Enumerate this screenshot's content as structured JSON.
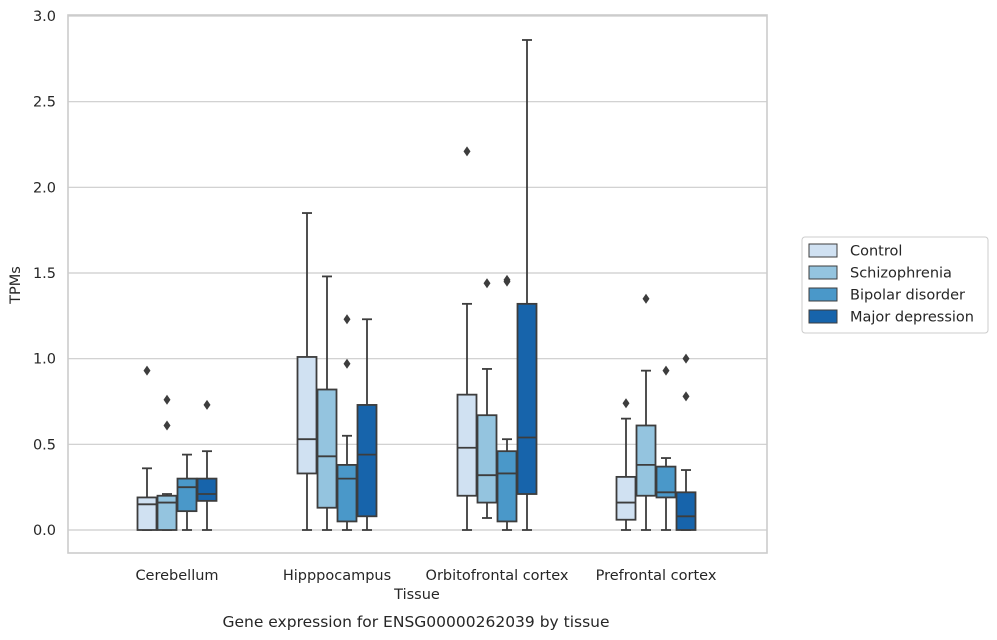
{
  "chart_data": {
    "type": "box",
    "title": "",
    "caption": "Gene expression for ENSG00000262039 by tissue",
    "xlabel": "Tissue",
    "ylabel": "TPMs",
    "ylim": [
      -0.14,
      3.0
    ],
    "yticks": [
      0.0,
      0.5,
      1.0,
      1.5,
      2.0,
      2.5,
      3.0
    ],
    "ytick_labels": [
      "0.0",
      "0.5",
      "1.0",
      "1.5",
      "2.0",
      "2.5",
      "3.0"
    ],
    "grid": "horizontal",
    "legend_position": "right",
    "categories": [
      "Cerebellum",
      "Hipppocampus",
      "Orbitofrontal cortex",
      "Prefrontal cortex"
    ],
    "series": [
      {
        "name": "Control",
        "color": "#d0e1f2",
        "boxes": [
          {
            "whisker_low": 0.0,
            "q1": 0.0,
            "median": 0.15,
            "q3": 0.19,
            "whisker_high": 0.36,
            "outliers": [
              0.93
            ]
          },
          {
            "whisker_low": 0.0,
            "q1": 0.33,
            "median": 0.53,
            "q3": 1.01,
            "whisker_high": 1.85,
            "outliers": []
          },
          {
            "whisker_low": 0.0,
            "q1": 0.2,
            "median": 0.48,
            "q3": 0.79,
            "whisker_high": 1.32,
            "outliers": [
              2.21
            ]
          },
          {
            "whisker_low": 0.0,
            "q1": 0.06,
            "median": 0.16,
            "q3": 0.31,
            "whisker_high": 0.65,
            "outliers": [
              0.74
            ]
          }
        ]
      },
      {
        "name": "Schizophrenia",
        "color": "#94c4df",
        "boxes": [
          {
            "whisker_low": 0.0,
            "q1": 0.0,
            "median": 0.16,
            "q3": 0.2,
            "whisker_high": 0.21,
            "outliers": [
              0.61,
              0.76
            ]
          },
          {
            "whisker_low": 0.0,
            "q1": 0.13,
            "median": 0.43,
            "q3": 0.82,
            "whisker_high": 1.48,
            "outliers": []
          },
          {
            "whisker_low": 0.07,
            "q1": 0.16,
            "median": 0.32,
            "q3": 0.67,
            "whisker_high": 0.94,
            "outliers": [
              1.44
            ]
          },
          {
            "whisker_low": 0.0,
            "q1": 0.2,
            "median": 0.38,
            "q3": 0.61,
            "whisker_high": 0.93,
            "outliers": [
              1.35
            ]
          }
        ]
      },
      {
        "name": "Bipolar disorder",
        "color": "#4a98c9",
        "boxes": [
          {
            "whisker_low": 0.0,
            "q1": 0.11,
            "median": 0.25,
            "q3": 0.3,
            "whisker_high": 0.44,
            "outliers": []
          },
          {
            "whisker_low": 0.0,
            "q1": 0.05,
            "median": 0.3,
            "q3": 0.38,
            "whisker_high": 0.55,
            "outliers": [
              0.97,
              1.23
            ]
          },
          {
            "whisker_low": 0.0,
            "q1": 0.05,
            "median": 0.33,
            "q3": 0.46,
            "whisker_high": 0.53,
            "outliers": [
              1.45,
              1.46
            ]
          },
          {
            "whisker_low": 0.0,
            "q1": 0.19,
            "median": 0.22,
            "q3": 0.37,
            "whisker_high": 0.42,
            "outliers": [
              0.93
            ]
          }
        ]
      },
      {
        "name": "Major depression",
        "color": "#1764ab",
        "boxes": [
          {
            "whisker_low": 0.0,
            "q1": 0.17,
            "median": 0.21,
            "q3": 0.3,
            "whisker_high": 0.46,
            "outliers": [
              0.73
            ]
          },
          {
            "whisker_low": 0.0,
            "q1": 0.08,
            "median": 0.44,
            "q3": 0.73,
            "whisker_high": 1.23,
            "outliers": []
          },
          {
            "whisker_low": 0.0,
            "q1": 0.21,
            "median": 0.54,
            "q3": 1.32,
            "whisker_high": 2.86,
            "outliers": []
          },
          {
            "whisker_low": 0.0,
            "q1": 0.0,
            "median": 0.08,
            "q3": 0.22,
            "whisker_high": 0.35,
            "outliers": [
              0.78,
              1.0
            ]
          }
        ]
      }
    ]
  }
}
